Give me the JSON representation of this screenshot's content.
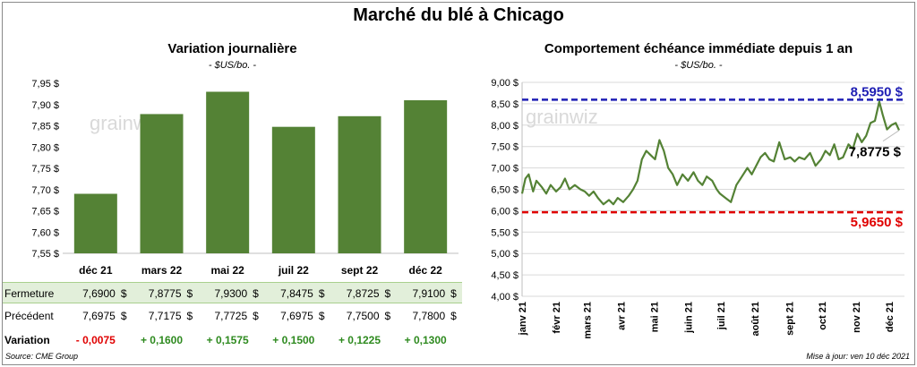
{
  "title": "Marché du blé à Chicago",
  "footer": {
    "source": "Source: CME Group",
    "updated": "Mise à jour: ven 10 déc 2021"
  },
  "watermark": "grainwiz",
  "colors": {
    "bar": "#548235",
    "line": "#548235",
    "high": "#1f1fb4",
    "low": "#e00000",
    "pos": "#2e8a1f",
    "neg": "#e00000",
    "row_bg": "#e2efda"
  },
  "table": {
    "label_close": "Fermeture",
    "label_prev": "Précédent",
    "label_var": "Variation",
    "currency": "$",
    "close": [
      "7,6900",
      "7,8775",
      "7,9300",
      "7,8475",
      "7,8725",
      "7,9100"
    ],
    "prev": [
      "7,6975",
      "7,7175",
      "7,7725",
      "7,6975",
      "7,7500",
      "7,7800"
    ],
    "var": [
      "- 0,0075",
      "+ 0,1600",
      "+ 0,1575",
      "+ 0,1500",
      "+ 0,1225",
      "+ 0,1300"
    ]
  },
  "chart_data": [
    {
      "type": "bar",
      "title": "Variation  journalière",
      "subtitle": "- $US/bo. -",
      "categories": [
        "déc 21",
        "mars 22",
        "mai 22",
        "juil 22",
        "sept 22",
        "déc 22"
      ],
      "values": [
        7.69,
        7.8775,
        7.93,
        7.8475,
        7.8725,
        7.91
      ],
      "ylim": [
        7.55,
        7.95
      ],
      "yticks": [
        "7,55 $",
        "7,60 $",
        "7,65 $",
        "7,70 $",
        "7,75 $",
        "7,80 $",
        "7,85 $",
        "7,90 $",
        "7,95 $"
      ],
      "grid": false
    },
    {
      "type": "line",
      "title": "Comportement  échéance immédiate depuis 1 an",
      "subtitle": "- $US/bo. -",
      "x_range": [
        "2021-01-01",
        "2021-12-10"
      ],
      "xticks": [
        "janv 21",
        "févr 21",
        "mars 21",
        "avr 21",
        "mai 21",
        "juin 21",
        "juil 21",
        "août 21",
        "sept 21",
        "oct 21",
        "nov 21",
        "déc 21"
      ],
      "ylim": [
        4.0,
        9.0
      ],
      "yticks": [
        "4,00 $",
        "4,50 $",
        "5,00 $",
        "5,50 $",
        "6,00 $",
        "6,50 $",
        "7,00 $",
        "7,50 $",
        "8,00 $",
        "8,50 $",
        "9,00 $"
      ],
      "grid": true,
      "high": {
        "value": 8.595,
        "label": "8,5950 $"
      },
      "low": {
        "value": 5.965,
        "label": "5,9650 $"
      },
      "last": {
        "value": 7.8775,
        "label": "7,8775 $"
      },
      "series": [
        {
          "x": [
            "2021-01-01",
            "2021-01-04",
            "2021-01-07",
            "2021-01-11",
            "2021-01-14",
            "2021-01-19",
            "2021-01-23",
            "2021-01-27",
            "2021-02-01",
            "2021-02-05",
            "2021-02-09",
            "2021-02-13",
            "2021-02-18",
            "2021-02-23",
            "2021-02-27",
            "2021-03-03",
            "2021-03-07",
            "2021-03-11",
            "2021-03-16",
            "2021-03-21",
            "2021-03-25",
            "2021-03-29",
            "2021-04-03",
            "2021-04-08",
            "2021-04-12",
            "2021-04-16",
            "2021-04-20",
            "2021-04-24",
            "2021-04-28",
            "2021-05-02",
            "2021-05-06",
            "2021-05-10",
            "2021-05-14",
            "2021-05-18",
            "2021-05-22",
            "2021-05-27",
            "2021-06-01",
            "2021-06-06",
            "2021-06-10",
            "2021-06-14",
            "2021-06-18",
            "2021-06-23",
            "2021-06-27",
            "2021-06-30",
            "2021-07-05",
            "2021-07-10",
            "2021-07-15",
            "2021-07-20",
            "2021-07-25",
            "2021-07-29",
            "2021-08-02",
            "2021-08-06",
            "2021-08-10",
            "2021-08-14",
            "2021-08-18",
            "2021-08-23",
            "2021-08-28",
            "2021-09-02",
            "2021-09-06",
            "2021-09-10",
            "2021-09-15",
            "2021-09-20",
            "2021-09-25",
            "2021-09-30",
            "2021-10-04",
            "2021-10-08",
            "2021-10-12",
            "2021-10-16",
            "2021-10-20",
            "2021-10-25",
            "2021-10-29",
            "2021-11-02",
            "2021-11-06",
            "2021-11-10",
            "2021-11-14",
            "2021-11-18",
            "2021-11-22",
            "2021-11-25",
            "2021-11-29",
            "2021-12-03",
            "2021-12-07",
            "2021-12-10"
          ],
          "values": [
            6.4,
            6.75,
            6.85,
            6.45,
            6.7,
            6.55,
            6.4,
            6.6,
            6.45,
            6.55,
            6.75,
            6.5,
            6.6,
            6.5,
            6.45,
            6.35,
            6.45,
            6.3,
            6.15,
            6.25,
            6.15,
            6.3,
            6.2,
            6.35,
            6.5,
            6.7,
            7.2,
            7.4,
            7.3,
            7.2,
            7.65,
            7.4,
            7.0,
            6.85,
            6.6,
            6.85,
            6.7,
            6.9,
            6.7,
            6.6,
            6.8,
            6.7,
            6.5,
            6.4,
            6.3,
            6.2,
            6.6,
            6.8,
            7.0,
            6.85,
            7.05,
            7.25,
            7.35,
            7.2,
            7.15,
            7.6,
            7.2,
            7.25,
            7.15,
            7.25,
            7.2,
            7.35,
            7.05,
            7.2,
            7.4,
            7.3,
            7.55,
            7.2,
            7.25,
            7.55,
            7.45,
            7.8,
            7.6,
            7.75,
            8.05,
            8.1,
            8.55,
            8.25,
            7.9,
            8.0,
            8.05,
            7.88
          ]
        }
      ]
    }
  ]
}
